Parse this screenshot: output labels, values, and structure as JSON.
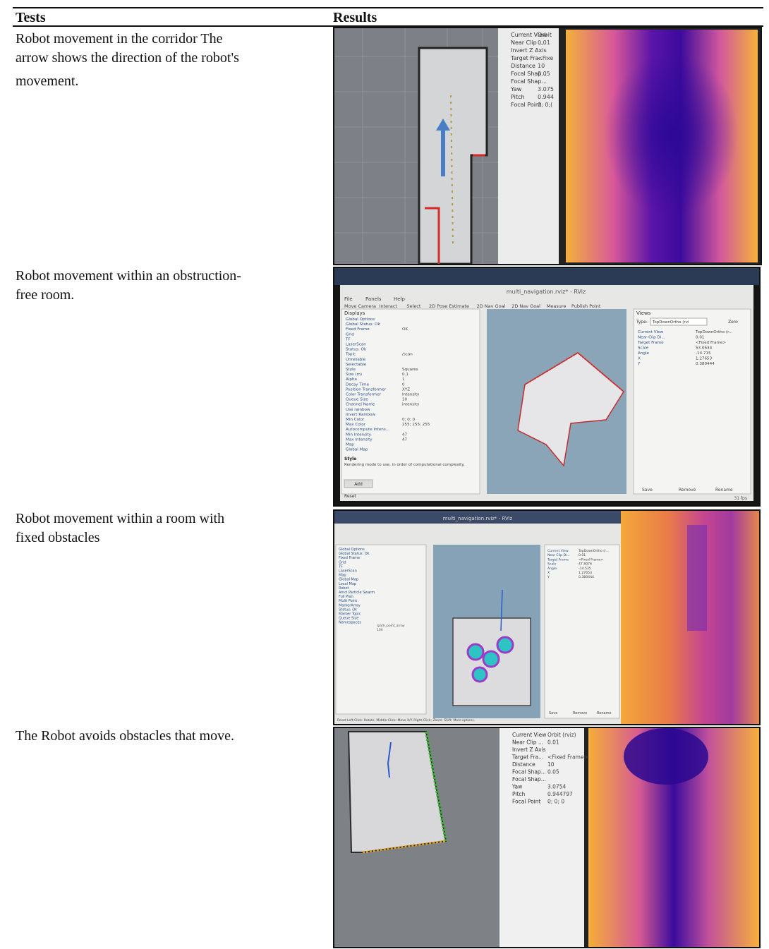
{
  "table": {
    "headers": [
      "Tests",
      "Results"
    ],
    "rows": [
      {
        "test_lines": [
          "Robot movement in the corridor The",
          "arrow shows the direction of the robot's",
          "movement."
        ]
      },
      {
        "test_lines": [
          "Robot movement within an obstruction-",
          "free room."
        ]
      },
      {
        "test_lines": [
          "Robot movement within a room with",
          "fixed obstacles"
        ]
      },
      {
        "test_lines": [
          "The Robot avoids obstacles that move."
        ]
      }
    ]
  },
  "panel1": {
    "view_rows": [
      {
        "label": "Current View",
        "value": "Orbit"
      },
      {
        "label": "Near Clip ...",
        "value": "0.01"
      },
      {
        "label": "Invert Z Axis",
        "value": ""
      },
      {
        "label": "Target Fra...",
        "value": "<Fixe"
      },
      {
        "label": "Distance",
        "value": "10"
      },
      {
        "label": "Focal Shap...",
        "value": "0.05"
      },
      {
        "label": "Focal Shap...",
        "value": ""
      },
      {
        "label": "Yaw",
        "value": "3.075"
      },
      {
        "label": "Pitch",
        "value": "0.944"
      },
      {
        "label": "Focal Point",
        "value": "0; 0;("
      }
    ]
  },
  "panel2": {
    "window_title": "multi_navigation.rviz* - RViz",
    "menu": [
      "File",
      "Panels",
      "Help"
    ],
    "toolbar": [
      "Move Camera",
      "Interact",
      "Select",
      "2D Pose Estimate",
      "2D Nav Goal",
      "2D Nav Goal",
      "Measure",
      "Publish Point"
    ],
    "displays_header": "Displays",
    "display_rows": [
      {
        "label": "Global Options",
        "value": ""
      },
      {
        "label": "Global Status: Ok",
        "value": ""
      },
      {
        "label": "Fixed Frame",
        "value": "OK"
      },
      {
        "label": "Grid",
        "value": ""
      },
      {
        "label": "TF",
        "value": ""
      },
      {
        "label": "LaserScan",
        "value": ""
      },
      {
        "label": "Status: Ok",
        "value": ""
      },
      {
        "label": "Topic",
        "value": "/scan"
      },
      {
        "label": "Unreliable",
        "value": ""
      },
      {
        "label": "Selectable",
        "value": ""
      },
      {
        "label": "Style",
        "value": "Squares"
      },
      {
        "label": "Size (m)",
        "value": "0.1"
      },
      {
        "label": "Alpha",
        "value": "1"
      },
      {
        "label": "Decay Time",
        "value": "0"
      },
      {
        "label": "Position Transformer",
        "value": "XYZ"
      },
      {
        "label": "Color Transformer",
        "value": "Intensity"
      },
      {
        "label": "Queue Size",
        "value": "10"
      },
      {
        "label": "Channel Name",
        "value": "intensity"
      },
      {
        "label": "Use rainbow",
        "value": ""
      },
      {
        "label": "Invert Rainbow",
        "value": ""
      },
      {
        "label": "Min Color",
        "value": "0; 0; 0"
      },
      {
        "label": "Max Color",
        "value": "255; 255; 255"
      },
      {
        "label": "Autocompute Intens...",
        "value": ""
      },
      {
        "label": "Min Intensity",
        "value": "47"
      },
      {
        "label": "Max Intensity",
        "value": "47"
      },
      {
        "label": "Map",
        "value": ""
      },
      {
        "label": "Global Map",
        "value": ""
      }
    ],
    "style_help_title": "Style",
    "style_help": "Rendering mode to use, in order of computational complexity.",
    "add_label": "Add",
    "reset_label": "Reset",
    "views_header": "Views",
    "views_type_label": "Type:",
    "views_type_value": "TopDownOrtho (rvi",
    "views_zero": "Zero",
    "views_rows": [
      {
        "label": "Current View",
        "value": "TopDownOrtho (r..."
      },
      {
        "label": "Near Clip Di...",
        "value": "0.01"
      },
      {
        "label": "Target Frame",
        "value": "<Fixed Frame>"
      },
      {
        "label": "Scale",
        "value": "53.0634"
      },
      {
        "label": "Angle",
        "value": "-14.715"
      },
      {
        "label": "X",
        "value": "1.27653"
      },
      {
        "label": "Y",
        "value": "0.380444"
      }
    ],
    "views_buttons": [
      "Save",
      "Remove",
      "Rename"
    ],
    "fps": "31 fps"
  },
  "panel3": {
    "window_title": "multi_navigation.rviz* - RViz",
    "display_rows": [
      "Global Options",
      "Global Status: Ok",
      "Fixed Frame",
      "Grid",
      "TF",
      "LaserScan",
      "Map",
      "Global Map",
      "Local Map",
      "Robot",
      "Amcl Particle Swarm",
      "Full Plan",
      "Multi Point",
      "MarkerArray",
      "Status: Ok",
      "Marker Topic",
      "Queue Size",
      "Namespaces"
    ],
    "marker_topic": "/path_point_array",
    "queue_size": "100",
    "views_rows": [
      {
        "label": "Current View",
        "value": "TopDownOrtho (r..."
      },
      {
        "label": "Near Clip Di...",
        "value": "0.01"
      },
      {
        "label": "Target Frame",
        "value": "<Fixed Frame>"
      },
      {
        "label": "Scale",
        "value": "47.8976"
      },
      {
        "label": "Angle",
        "value": "-14.535"
      },
      {
        "label": "X",
        "value": "1.27653"
      },
      {
        "label": "Y",
        "value": "0.380444"
      }
    ],
    "views_buttons": [
      "Save",
      "Remove",
      "Rename"
    ],
    "status_hint": "Reset   Left-Click: Rotate. Middle-Click: Move X/Y. Right-Click: Zoom. Shift: More options."
  },
  "panel4": {
    "view_rows": [
      {
        "label": "Current View",
        "value": "Orbit (rviz)"
      },
      {
        "label": "Near Clip ...",
        "value": "0.01"
      },
      {
        "label": "Invert Z Axis",
        "value": ""
      },
      {
        "label": "Target Fra...",
        "value": "<Fixed Frame>"
      },
      {
        "label": "Distance",
        "value": "10"
      },
      {
        "label": "Focal Shap...",
        "value": "0.05"
      },
      {
        "label": "Focal Shap...",
        "value": ""
      },
      {
        "label": "Yaw",
        "value": "3.0754"
      },
      {
        "label": "Pitch",
        "value": "0.944797"
      },
      {
        "label": "Focal Point",
        "value": "0; 0; 0"
      }
    ]
  }
}
